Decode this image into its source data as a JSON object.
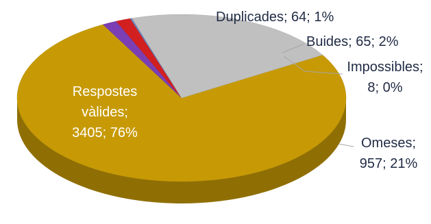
{
  "chart_data": {
    "type": "pie",
    "title": "",
    "style": "3d",
    "legend": "none",
    "slices": [
      {
        "key": "valides",
        "label_lines": [
          "Respostes",
          "vàlides;",
          "3405; 76%"
        ],
        "value": 3405,
        "percent": "76%",
        "color": "#c79a05"
      },
      {
        "key": "duplicades",
        "label_lines": [
          "Duplicades; 64; 1%"
        ],
        "value": 64,
        "percent": "1%",
        "color": "#7b3fb3"
      },
      {
        "key": "buides",
        "label_lines": [
          "Buides; 65; 2%"
        ],
        "value": 65,
        "percent": "2%",
        "color": "#d21f1f"
      },
      {
        "key": "impossibles",
        "label_lines": [
          "Impossibles;",
          "8; 0%"
        ],
        "value": 8,
        "percent": "0%",
        "color": "#6b7fb8"
      },
      {
        "key": "omeses",
        "label_lines": [
          "Omeses;",
          "957; 21%"
        ],
        "value": 957,
        "percent": "21%",
        "color": "#c0c0c0"
      }
    ]
  }
}
